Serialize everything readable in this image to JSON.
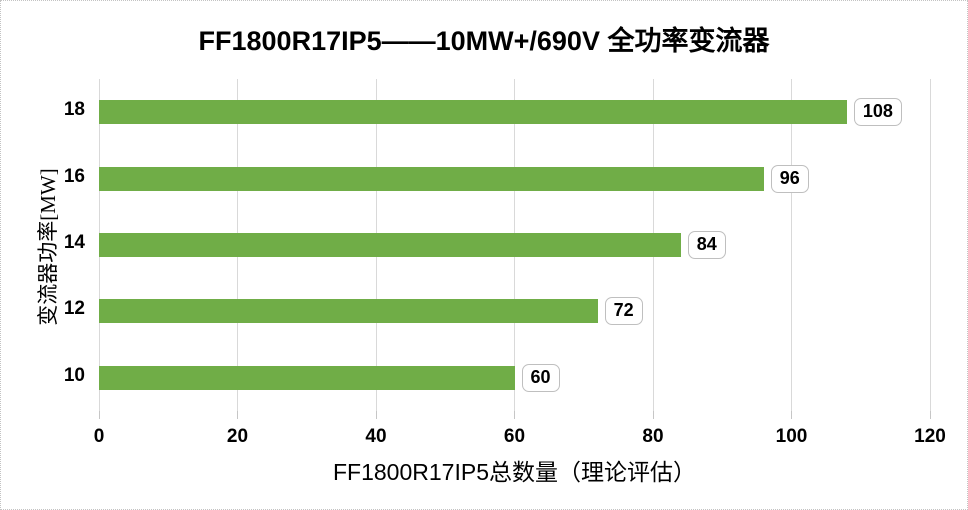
{
  "chart_data": {
    "type": "bar",
    "orientation": "horizontal",
    "title": "FF1800R17IP5——10MW+/690V 全功率变流器",
    "xlabel": "FF1800R17IP5总数量（理论评估）",
    "ylabel": "变流器功率[MW]",
    "categories": [
      "18",
      "16",
      "14",
      "12",
      "10"
    ],
    "values": [
      108,
      96,
      84,
      72,
      60
    ],
    "data_labels": [
      "108",
      "96",
      "84",
      "72",
      "60"
    ],
    "xlim": [
      0,
      120
    ],
    "xticks": [
      0,
      20,
      40,
      60,
      80,
      100,
      120
    ],
    "grid": "vertical",
    "legend": "none",
    "colors": {
      "bar": "#70AD47",
      "gridline": "#D9D9D9",
      "tick": "#C6C6C6",
      "label_box_border": "#BFBFBF",
      "text": "#000000",
      "chart_border": "#C3C3C3"
    }
  }
}
